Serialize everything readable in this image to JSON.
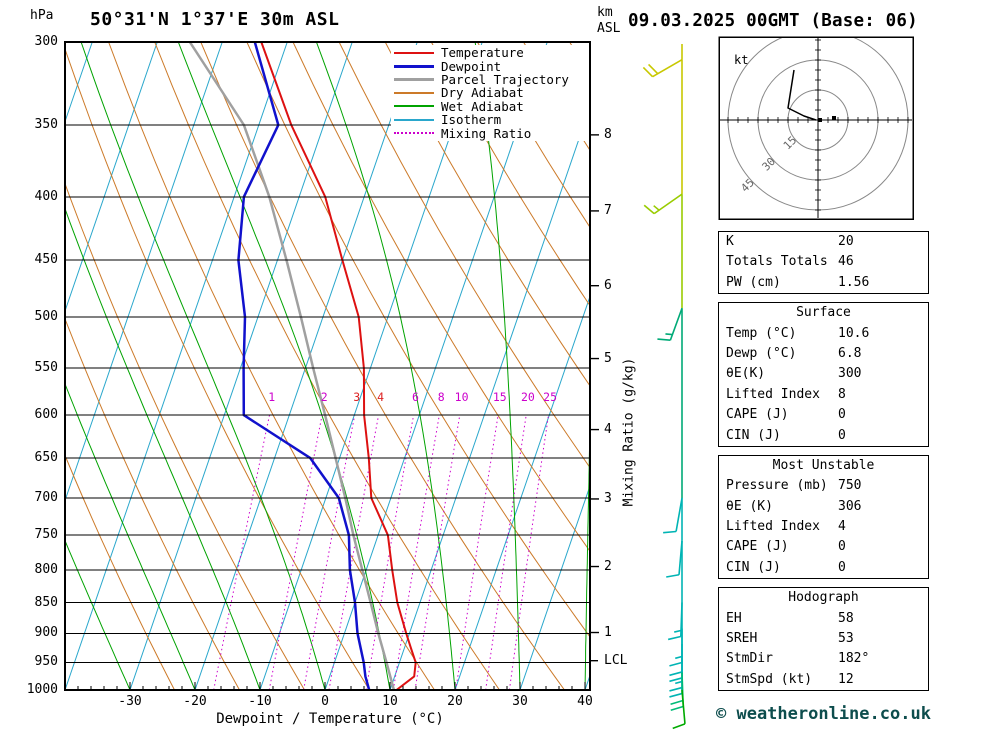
{
  "header": {
    "pressure_unit": "hPa",
    "title": "50°31'N 1°37'E 30m ASL",
    "altitude_unit_top": "km",
    "altitude_unit_bottom": "ASL",
    "datetime": "09.03.2025 00GMT (Base: 06)"
  },
  "axes": {
    "xlabel": "Dewpoint / Temperature (°C)",
    "right_axis_label": "Mixing Ratio (g/kg)",
    "pressure_ticks": [
      300,
      350,
      400,
      450,
      500,
      550,
      600,
      650,
      700,
      750,
      800,
      850,
      900,
      950,
      1000
    ],
    "temp_ticks": [
      -30,
      -20,
      -10,
      0,
      10,
      20,
      30,
      40
    ],
    "km_ticks": [
      1,
      2,
      3,
      4,
      5,
      6,
      7,
      8
    ],
    "lcl_label": "LCL"
  },
  "legend": {
    "items": [
      {
        "label": "Temperature",
        "color": "#dd1111",
        "width": 2,
        "dotted": false
      },
      {
        "label": "Dewpoint",
        "color": "#1111cc",
        "width": 3,
        "dotted": false
      },
      {
        "label": "Parcel Trajectory",
        "color": "#a0a0a0",
        "width": 3,
        "dotted": false
      },
      {
        "label": "Dry Adiabat",
        "color": "#cc7a29",
        "width": 2,
        "dotted": false
      },
      {
        "label": "Wet Adiabat",
        "color": "#00a300",
        "width": 2,
        "dotted": false
      },
      {
        "label": "Isotherm",
        "color": "#2aa7cc",
        "width": 2,
        "dotted": false
      },
      {
        "label": "Mixing Ratio",
        "color": "#cc00cc",
        "width": 2,
        "dotted": true
      }
    ]
  },
  "chart_data": {
    "type": "skewt_log_p",
    "pressure_range_hpa": [
      300,
      1000
    ],
    "surface_temp_range_c": [
      -40,
      40
    ],
    "temperature_profile_p_t": [
      [
        1000,
        11
      ],
      [
        975,
        13
      ],
      [
        950,
        12.5
      ],
      [
        925,
        11
      ],
      [
        900,
        9.5
      ],
      [
        850,
        6.5
      ],
      [
        800,
        4
      ],
      [
        750,
        1.5
      ],
      [
        700,
        -3
      ],
      [
        650,
        -5.5
      ],
      [
        600,
        -8.5
      ],
      [
        550,
        -11
      ],
      [
        500,
        -14.5
      ],
      [
        450,
        -20
      ],
      [
        400,
        -26
      ],
      [
        350,
        -35
      ],
      [
        300,
        -44
      ]
    ],
    "dewpoint_profile_p_t": [
      [
        1000,
        6.8
      ],
      [
        975,
        5.5
      ],
      [
        950,
        4.5
      ],
      [
        900,
        2
      ],
      [
        850,
        0
      ],
      [
        800,
        -2.5
      ],
      [
        750,
        -4.5
      ],
      [
        700,
        -8
      ],
      [
        650,
        -14.5
      ],
      [
        600,
        -27
      ],
      [
        550,
        -29.5
      ],
      [
        500,
        -32
      ],
      [
        450,
        -36
      ],
      [
        400,
        -38.5
      ],
      [
        350,
        -37
      ],
      [
        300,
        -45
      ]
    ],
    "parcel_profile_p_t": [
      [
        1000,
        10.6
      ],
      [
        950,
        8
      ],
      [
        900,
        5.2
      ],
      [
        850,
        2.4
      ],
      [
        800,
        -0.6
      ],
      [
        750,
        -3.8
      ],
      [
        700,
        -7
      ],
      [
        650,
        -10.6
      ],
      [
        600,
        -14.5
      ],
      [
        550,
        -18.8
      ],
      [
        500,
        -23.4
      ],
      [
        450,
        -28.6
      ],
      [
        400,
        -34.6
      ],
      [
        350,
        -42.3
      ],
      [
        300,
        -55
      ]
    ],
    "lcl_pressure_hpa": 947,
    "mixing_ratio_lines_g_kg": [
      {
        "value": 1,
        "label_color": "#cc00cc"
      },
      {
        "value": 2,
        "label_color": "#cc00cc"
      },
      {
        "value": 3,
        "label_color": "#dd2222"
      },
      {
        "value": 4,
        "label_color": "#dd2222"
      },
      {
        "value": 6,
        "label_color": "#cc00cc"
      },
      {
        "value": 8,
        "label_color": "#cc00cc"
      },
      {
        "value": 10,
        "label_color": "#cc00cc"
      },
      {
        "value": 15,
        "label_color": "#cc00cc"
      },
      {
        "value": 20,
        "label_color": "#cc00cc"
      },
      {
        "value": 25,
        "label_color": "#cc00cc"
      }
    ],
    "wind_barbs": [
      {
        "p": 310,
        "speed_kt": 20,
        "dir_deg": 240,
        "color": "#c8c800"
      },
      {
        "p": 398,
        "speed_kt": 15,
        "dir_deg": 235,
        "color": "#99cc00"
      },
      {
        "p": 492,
        "speed_kt": 15,
        "dir_deg": 200,
        "color": "#00aa77"
      },
      {
        "p": 700,
        "speed_kt": 10,
        "dir_deg": 190,
        "color": "#00b4b4"
      },
      {
        "p": 758,
        "speed_kt": 10,
        "dir_deg": 185,
        "color": "#00b4b4"
      },
      {
        "p": 850,
        "speed_kt": 15,
        "dir_deg": 182,
        "color": "#00b4b4"
      },
      {
        "p": 892,
        "speed_kt": 15,
        "dir_deg": 180,
        "color": "#00b4b4"
      },
      {
        "p": 918,
        "speed_kt": 20,
        "dir_deg": 180,
        "color": "#00b4b4"
      },
      {
        "p": 945,
        "speed_kt": 25,
        "dir_deg": 180,
        "color": "#00b4b4"
      },
      {
        "p": 968,
        "speed_kt": 20,
        "dir_deg": 178,
        "color": "#00bb77"
      },
      {
        "p": 1000,
        "speed_kt": 10,
        "dir_deg": 175,
        "color": "#00aa00"
      }
    ],
    "line_colors": {
      "isotherm": "#2aa7cc",
      "dry_adiabat": "#cc7a29",
      "wet_adiabat": "#00a300",
      "mixing_ratio": "#cc00cc",
      "temperature": "#dd1111",
      "dewpoint": "#1111cc",
      "parcel": "#a0a0a0",
      "grid": "#000000"
    }
  },
  "hodograph": {
    "unit_label": "kt",
    "ring_labels": [
      "15",
      "30",
      "45"
    ],
    "ring_step_kt": 15,
    "trace_kt": [
      [
        -12,
        -25
      ],
      [
        -15,
        -6
      ],
      [
        -7,
        -2
      ],
      [
        -1,
        0
      ]
    ],
    "marker_kt": [
      [
        1,
        0
      ],
      [
        8,
        -1
      ]
    ]
  },
  "tables": {
    "indices": {
      "rows": [
        [
          "K",
          "20"
        ],
        [
          "Totals Totals",
          "46"
        ],
        [
          "PW (cm)",
          "1.56"
        ]
      ]
    },
    "surface": {
      "title": "Surface",
      "rows": [
        [
          "Temp (°C)",
          "10.6"
        ],
        [
          "Dewp (°C)",
          "6.8"
        ],
        [
          "θE(K)",
          "300"
        ],
        [
          "Lifted Index",
          "8"
        ],
        [
          "CAPE (J)",
          "0"
        ],
        [
          "CIN (J)",
          "0"
        ]
      ]
    },
    "most_unstable": {
      "title": "Most Unstable",
      "rows": [
        [
          "Pressure (mb)",
          "750"
        ],
        [
          "θE (K)",
          "306"
        ],
        [
          "Lifted Index",
          "4"
        ],
        [
          "CAPE (J)",
          "0"
        ],
        [
          "CIN (J)",
          "0"
        ]
      ]
    },
    "hodograph_stats": {
      "title": "Hodograph",
      "rows": [
        [
          "EH",
          "58"
        ],
        [
          "SREH",
          "53"
        ],
        [
          "StmDir",
          "182°"
        ],
        [
          "StmSpd (kt)",
          "12"
        ]
      ]
    }
  },
  "footer": {
    "copyright": "© weatheronline.co.uk"
  }
}
